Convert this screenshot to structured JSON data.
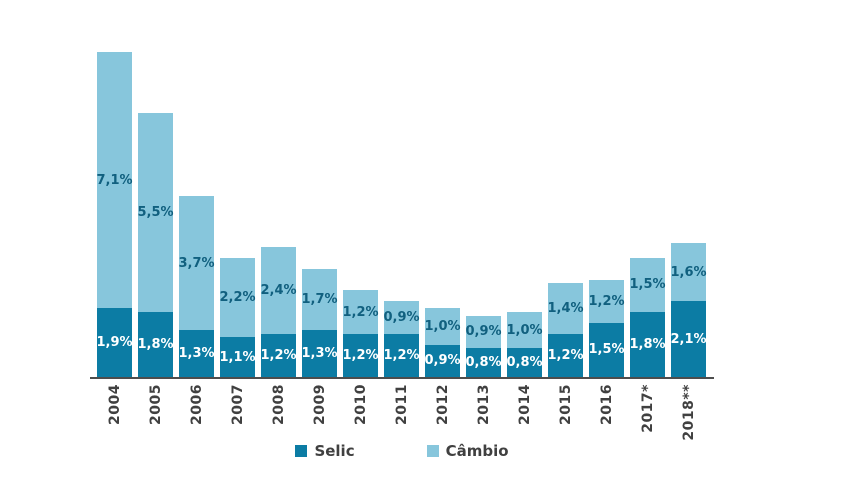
{
  "chart_data": {
    "type": "bar",
    "stacked": true,
    "title": "",
    "xlabel": "",
    "ylabel": "",
    "grid": false,
    "legend_position": "bottom",
    "ylim": [
      0,
      9.0
    ],
    "unit": "%",
    "axis_color": "#4d4d4d",
    "tick_label_color": "#404040",
    "categories": [
      "2004",
      "2005",
      "2006",
      "2007",
      "2008",
      "2009",
      "2010",
      "2011",
      "2012",
      "2013",
      "2014",
      "2015",
      "2016",
      "2017*",
      "2018**"
    ],
    "series": [
      {
        "name": "Selic",
        "color": "#0c7ca4",
        "label_color": "#ffffff",
        "values": [
          1.9,
          1.8,
          1.3,
          1.1,
          1.2,
          1.3,
          1.2,
          1.2,
          0.9,
          0.8,
          0.8,
          1.2,
          1.5,
          1.8,
          2.1
        ],
        "labels": [
          "1,9%",
          "1,8%",
          "1,3%",
          "1,1%",
          "1,2%",
          "1,3%",
          "1,2%",
          "1,2%",
          "0,9%",
          "0,8%",
          "0,8%",
          "1,2%",
          "1,5%",
          "1,8%",
          "2,1%"
        ]
      },
      {
        "name": "Câmbio",
        "color": "#87c6dc",
        "label_color": "#11607f",
        "values": [
          7.1,
          5.5,
          3.7,
          2.2,
          2.4,
          1.7,
          1.2,
          0.9,
          1.0,
          0.9,
          1.0,
          1.4,
          1.2,
          1.5,
          1.6
        ],
        "labels": [
          "7,1%",
          "5,5%",
          "3,7%",
          "2,2%",
          "2,4%",
          "1,7%",
          "1,2%",
          "0,9%",
          "1,0%",
          "0,9%",
          "1,0%",
          "1,4%",
          "1,2%",
          "1,5%",
          "1,6%"
        ]
      }
    ]
  },
  "legend": {
    "items": [
      {
        "label": "Selic",
        "color": "#0c7ca4"
      },
      {
        "label": "Câmbio",
        "color": "#87c6dc"
      }
    ]
  }
}
